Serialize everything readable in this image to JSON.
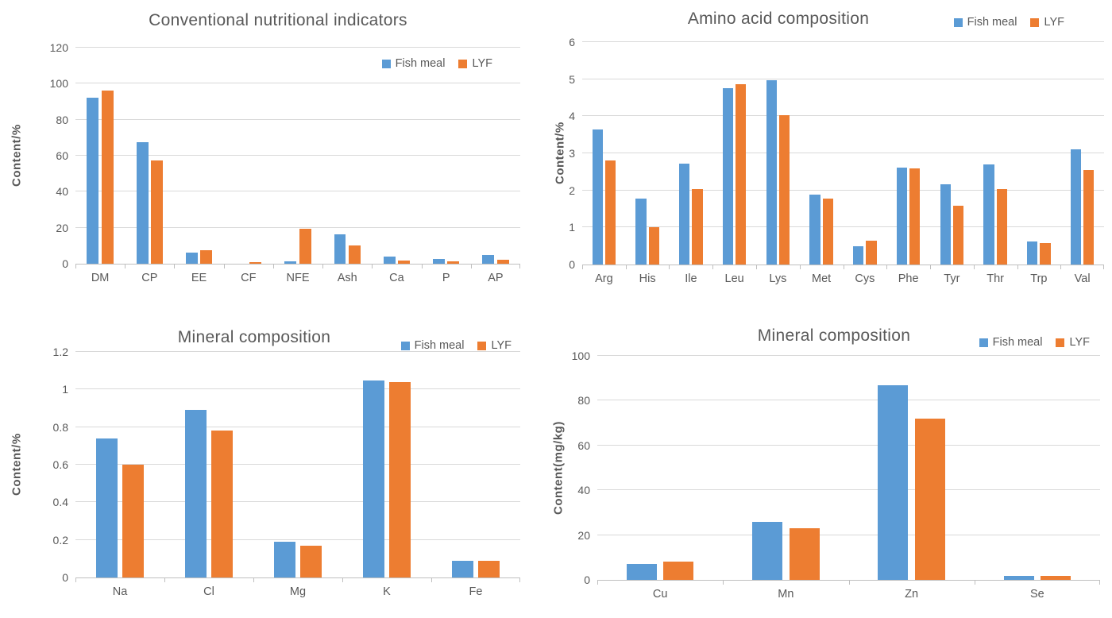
{
  "colors": {
    "fish_meal": "#5B9BD5",
    "lyf": "#ED7D31",
    "text": "#595959",
    "gridline": "#D9D9D9",
    "axis_line": "#BFBFBF"
  },
  "chart_data": [
    {
      "id": "conventional-nutritional-indicators",
      "type": "bar",
      "title": "Conventional nutritional indicators",
      "xlabel": "",
      "ylabel": "Content/%",
      "ylim": [
        0,
        120
      ],
      "yticks": [
        0,
        20,
        40,
        60,
        80,
        100,
        120
      ],
      "grid": true,
      "legend_position": "inside-top-right",
      "categories": [
        "DM",
        "CP",
        "EE",
        "CF",
        "NFE",
        "Ash",
        "Ca",
        "P",
        "AP"
      ],
      "series": [
        {
          "name": "Fish meal",
          "color": "#5B9BD5",
          "values": [
            92,
            67.3,
            6.3,
            0,
            1.5,
            16.2,
            3.9,
            2.7,
            4.8
          ]
        },
        {
          "name": "LYF",
          "color": "#ED7D31",
          "values": [
            96,
            57.2,
            7.5,
            1,
            19.5,
            10.2,
            1.9,
            1.2,
            2.2
          ]
        }
      ]
    },
    {
      "id": "amino-acid-composition",
      "type": "bar",
      "title": "Amino acid composition",
      "xlabel": "",
      "ylabel": "Content/%",
      "ylim": [
        0,
        6
      ],
      "yticks": [
        0,
        1,
        2,
        3,
        4,
        5,
        6
      ],
      "grid": true,
      "legend_position": "title-right",
      "categories": [
        "Arg",
        "His",
        "Ile",
        "Leu",
        "Lys",
        "Met",
        "Cys",
        "Phe",
        "Tyr",
        "Thr",
        "Trp",
        "Val"
      ],
      "series": [
        {
          "name": "Fish meal",
          "color": "#5B9BD5",
          "values": [
            3.64,
            1.78,
            2.72,
            4.75,
            4.97,
            1.89,
            0.49,
            2.62,
            2.16,
            2.7,
            0.62,
            3.1
          ]
        },
        {
          "name": "LYF",
          "color": "#ED7D31",
          "values": [
            2.8,
            1.0,
            2.04,
            4.86,
            4.02,
            1.78,
            0.64,
            2.6,
            1.59,
            2.04,
            0.57,
            2.54
          ]
        }
      ]
    },
    {
      "id": "mineral-composition-percent",
      "type": "bar",
      "title": "Mineral composition",
      "xlabel": "",
      "ylabel": "Content/%",
      "ylim": [
        0,
        1.2
      ],
      "yticks": [
        0,
        0.2,
        0.4,
        0.6,
        0.8,
        1,
        1.2
      ],
      "grid": true,
      "legend_position": "title-right",
      "categories": [
        "Na",
        "Cl",
        "Mg",
        "K",
        "Fe"
      ],
      "series": [
        {
          "name": "Fish meal",
          "color": "#5B9BD5",
          "values": [
            0.74,
            0.89,
            0.19,
            1.05,
            0.09
          ]
        },
        {
          "name": "LYF",
          "color": "#ED7D31",
          "values": [
            0.6,
            0.78,
            0.17,
            1.04,
            0.09
          ]
        }
      ]
    },
    {
      "id": "mineral-composition-mgkg",
      "type": "bar",
      "title": "Mineral composition",
      "xlabel": "",
      "ylabel": "Content(mg/kg)",
      "ylim": [
        0,
        100
      ],
      "yticks": [
        0,
        20,
        40,
        60,
        80,
        100
      ],
      "grid": true,
      "legend_position": "title-right",
      "categories": [
        "Cu",
        "Mn",
        "Zn",
        "Se"
      ],
      "series": [
        {
          "name": "Fish meal",
          "color": "#5B9BD5",
          "values": [
            7.2,
            26,
            87,
            1.9
          ]
        },
        {
          "name": "LYF",
          "color": "#ED7D31",
          "values": [
            8.0,
            23,
            72,
            1.9
          ]
        }
      ]
    }
  ]
}
